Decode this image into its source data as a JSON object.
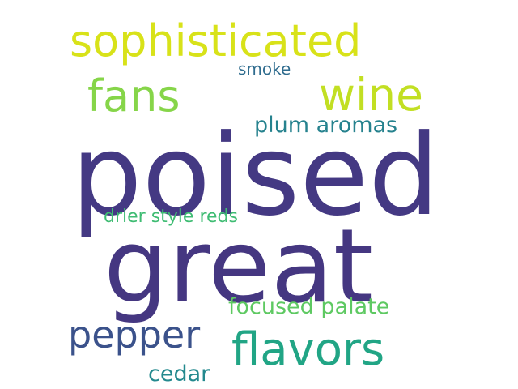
{
  "words": [
    {
      "text": "poised",
      "color": "#443983"
    },
    {
      "text": "great",
      "color": "#453781"
    },
    {
      "text": "sophisticated",
      "color": "#d8e219"
    },
    {
      "text": "wine",
      "color": "#c2df23"
    },
    {
      "text": "fans",
      "color": "#86d549"
    },
    {
      "text": "smoke",
      "color": "#2f6c8e"
    },
    {
      "text": "plum aromas",
      "color": "#26828e"
    },
    {
      "text": "drier style reds",
      "color": "#3fbc73"
    },
    {
      "text": "focused palate",
      "color": "#5ec962"
    },
    {
      "text": "pepper",
      "color": "#3b528b"
    },
    {
      "text": "flavors",
      "color": "#21a585"
    },
    {
      "text": "cedar",
      "color": "#23898e"
    }
  ]
}
